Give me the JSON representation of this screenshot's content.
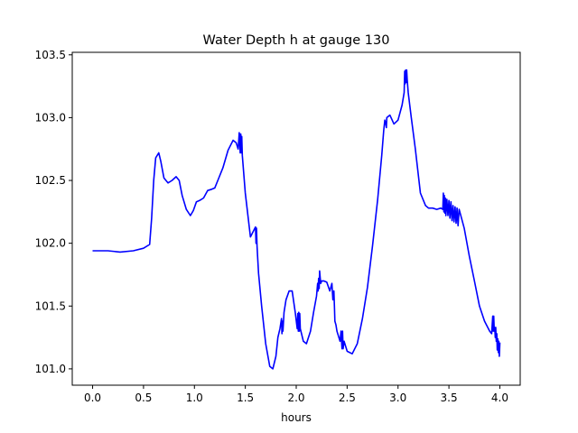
{
  "chart_data": {
    "type": "line",
    "title": "Water Depth h at gauge 130",
    "xlabel": "hours",
    "ylabel": "",
    "xlim": [
      -0.2,
      4.2
    ],
    "ylim": [
      100.87,
      103.52
    ],
    "xticks": [
      0.0,
      0.5,
      1.0,
      1.5,
      2.0,
      2.5,
      3.0,
      3.5,
      4.0
    ],
    "xtick_labels": [
      "0.0",
      "0.5",
      "1.0",
      "1.5",
      "2.0",
      "2.5",
      "3.0",
      "3.5",
      "4.0"
    ],
    "yticks": [
      101.0,
      101.5,
      102.0,
      102.5,
      103.0,
      103.5
    ],
    "ytick_labels": [
      "101.0",
      "101.5",
      "102.0",
      "102.5",
      "103.0",
      "103.5"
    ],
    "grid": false,
    "series": [
      {
        "color": "#0000ff",
        "x": [
          0.0,
          0.15,
          0.27,
          0.4,
          0.5,
          0.56,
          0.58,
          0.6,
          0.62,
          0.65,
          0.67,
          0.7,
          0.74,
          0.78,
          0.82,
          0.85,
          0.88,
          0.92,
          0.96,
          0.99,
          1.02,
          1.05,
          1.09,
          1.13,
          1.17,
          1.2,
          1.23,
          1.28,
          1.33,
          1.38,
          1.41,
          1.43,
          1.44,
          1.45,
          1.455,
          1.46,
          1.465,
          1.47,
          1.5,
          1.55,
          1.6,
          1.605,
          1.61,
          1.615,
          1.62,
          1.63,
          1.66,
          1.7,
          1.74,
          1.77,
          1.8,
          1.82,
          1.84,
          1.855,
          1.86,
          1.865,
          1.87,
          1.88,
          1.9,
          1.93,
          1.96,
          1.99,
          2.01,
          2.015,
          2.02,
          2.025,
          2.03,
          2.035,
          2.04,
          2.07,
          2.1,
          2.14,
          2.17,
          2.2,
          2.21,
          2.215,
          2.22,
          2.225,
          2.23,
          2.24,
          2.25,
          2.27,
          2.3,
          2.33,
          2.35,
          2.36,
          2.37,
          2.375,
          2.38,
          2.39,
          2.4,
          2.43,
          2.44,
          2.45,
          2.455,
          2.46,
          2.47,
          2.5,
          2.55,
          2.6,
          2.65,
          2.7,
          2.75,
          2.8,
          2.84,
          2.86,
          2.87,
          2.88,
          2.885,
          2.89,
          2.92,
          2.96,
          3.0,
          3.04,
          3.06,
          3.065,
          3.07,
          3.075,
          3.08,
          3.085,
          3.09,
          3.1,
          3.13,
          3.17,
          3.22,
          3.27,
          3.3,
          3.34,
          3.38,
          3.42,
          3.44,
          3.445,
          3.45,
          3.455,
          3.46,
          3.465,
          3.47,
          3.48,
          3.49,
          3.5,
          3.51,
          3.52,
          3.53,
          3.54,
          3.55,
          3.56,
          3.57,
          3.58,
          3.59,
          3.6,
          3.65,
          3.7,
          3.75,
          3.8,
          3.85,
          3.9,
          3.92,
          3.93,
          3.935,
          3.94,
          3.945,
          3.95,
          3.955,
          3.96,
          3.965,
          3.97,
          3.975,
          3.98,
          3.985,
          3.99,
          3.995,
          4.0
        ],
        "y": [
          101.94,
          101.94,
          101.93,
          101.94,
          101.96,
          101.99,
          102.2,
          102.5,
          102.68,
          102.72,
          102.65,
          102.52,
          102.48,
          102.5,
          102.53,
          102.5,
          102.38,
          102.27,
          102.22,
          102.26,
          102.33,
          102.34,
          102.36,
          102.42,
          102.43,
          102.44,
          102.5,
          102.6,
          102.74,
          102.82,
          102.8,
          102.75,
          102.88,
          102.72,
          102.87,
          102.72,
          102.85,
          102.7,
          102.4,
          102.05,
          102.13,
          102.0,
          102.12,
          101.98,
          101.9,
          101.76,
          101.5,
          101.2,
          101.02,
          101.0,
          101.1,
          101.25,
          101.32,
          101.4,
          101.28,
          101.38,
          101.3,
          101.45,
          101.55,
          101.62,
          101.62,
          101.45,
          101.32,
          101.44,
          101.3,
          101.45,
          101.3,
          101.44,
          101.32,
          101.22,
          101.2,
          101.3,
          101.45,
          101.58,
          101.68,
          101.62,
          101.72,
          101.64,
          101.78,
          101.68,
          101.7,
          101.7,
          101.69,
          101.62,
          101.68,
          101.55,
          101.62,
          101.5,
          101.38,
          101.35,
          101.3,
          101.22,
          101.3,
          101.16,
          101.3,
          101.16,
          101.22,
          101.14,
          101.12,
          101.2,
          101.4,
          101.65,
          101.98,
          102.35,
          102.7,
          102.9,
          102.98,
          102.95,
          102.92,
          103.0,
          103.02,
          102.95,
          102.98,
          103.1,
          103.2,
          103.37,
          103.27,
          103.38,
          103.28,
          103.38,
          103.3,
          103.2,
          103.0,
          102.75,
          102.4,
          102.3,
          102.28,
          102.28,
          102.27,
          102.28,
          102.27,
          102.4,
          102.25,
          102.38,
          102.24,
          102.36,
          102.22,
          102.35,
          102.22,
          102.34,
          102.2,
          102.33,
          102.18,
          102.3,
          102.17,
          102.29,
          102.16,
          102.28,
          102.14,
          102.27,
          102.12,
          101.9,
          101.7,
          101.5,
          101.38,
          101.3,
          101.28,
          101.42,
          101.3,
          101.42,
          101.3,
          101.33,
          101.25,
          101.33,
          101.22,
          101.28,
          101.15,
          101.24,
          101.13,
          101.22,
          101.1,
          101.21
        ]
      }
    ]
  }
}
